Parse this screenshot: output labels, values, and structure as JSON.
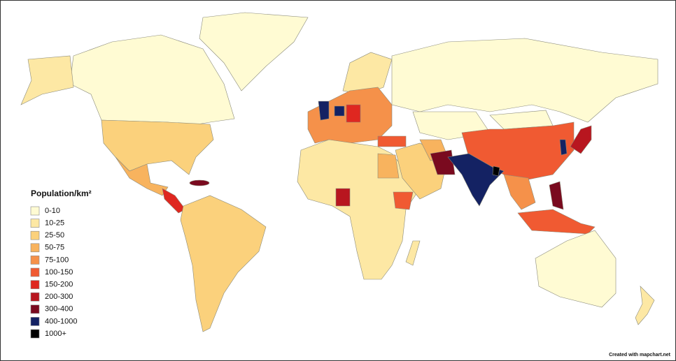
{
  "legend": {
    "title": "Population/km²",
    "items": [
      {
        "label": "0-10",
        "color": "#fffbd3"
      },
      {
        "label": "10-25",
        "color": "#fde8a4"
      },
      {
        "label": "25-50",
        "color": "#fbd17c"
      },
      {
        "label": "50-75",
        "color": "#f8b35e"
      },
      {
        "label": "75-100",
        "color": "#f5914a"
      },
      {
        "label": "100-150",
        "color": "#f05a32"
      },
      {
        "label": "150-200",
        "color": "#df2720"
      },
      {
        "label": "200-300",
        "color": "#b8161f"
      },
      {
        "label": "300-400",
        "color": "#7a0a1f"
      },
      {
        "label": "400-1000",
        "color": "#142263"
      },
      {
        "label": "1000+",
        "color": "#000000"
      }
    ]
  },
  "credit": "Created with mapchart.net"
}
